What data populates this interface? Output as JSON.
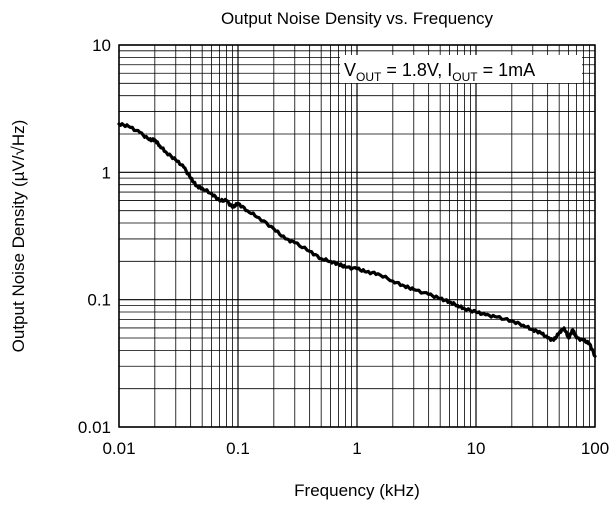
{
  "chart_data": {
    "type": "line",
    "title": "Output Noise Density vs. Frequency",
    "xlabel": "Frequency (kHz)",
    "ylabel": "Output Noise Density  (µV/√Hz)",
    "x_scale": "log",
    "y_scale": "log",
    "xlim": [
      0.01,
      100
    ],
    "ylim": [
      0.01,
      10
    ],
    "grid": true,
    "x_ticks": [
      {
        "value": 0.01,
        "label": "0.01"
      },
      {
        "value": 0.1,
        "label": "0.1"
      },
      {
        "value": 1,
        "label": "1"
      },
      {
        "value": 10,
        "label": "10"
      },
      {
        "value": 100,
        "label": "100"
      }
    ],
    "y_ticks": [
      {
        "value": 0.01,
        "label": "0.01"
      },
      {
        "value": 0.1,
        "label": "0.1"
      },
      {
        "value": 1,
        "label": "1"
      },
      {
        "value": 10,
        "label": "10"
      }
    ],
    "annotation": {
      "v_main": "V",
      "v_sub": "OUT",
      "v_rest": " = 1.8V, I",
      "i_sub": "OUT",
      "i_rest": " = 1mA"
    },
    "series": [
      {
        "color": "#000000",
        "x": [
          0.01,
          0.012,
          0.015,
          0.018,
          0.02,
          0.022,
          0.025,
          0.03,
          0.035,
          0.04,
          0.045,
          0.05,
          0.06,
          0.07,
          0.08,
          0.09,
          0.1,
          0.12,
          0.15,
          0.2,
          0.25,
          0.3,
          0.4,
          0.5,
          0.6,
          0.7,
          0.8,
          1,
          1.2,
          1.5,
          2,
          2.5,
          3,
          4,
          5,
          6,
          7,
          8,
          10,
          12,
          15,
          20,
          25,
          30,
          35,
          40,
          45,
          50,
          55,
          60,
          65,
          70,
          80,
          90,
          100
        ],
        "y": [
          2.4,
          2.3,
          2.05,
          1.8,
          1.8,
          1.62,
          1.43,
          1.25,
          1.1,
          0.9,
          0.78,
          0.75,
          0.68,
          0.6,
          0.6,
          0.53,
          0.57,
          0.5,
          0.44,
          0.36,
          0.3,
          0.28,
          0.24,
          0.21,
          0.2,
          0.19,
          0.18,
          0.175,
          0.165,
          0.16,
          0.14,
          0.128,
          0.12,
          0.11,
          0.102,
          0.096,
          0.09,
          0.085,
          0.08,
          0.076,
          0.073,
          0.068,
          0.063,
          0.058,
          0.055,
          0.05,
          0.048,
          0.055,
          0.06,
          0.05,
          0.058,
          0.05,
          0.048,
          0.045,
          0.036
        ]
      }
    ]
  }
}
